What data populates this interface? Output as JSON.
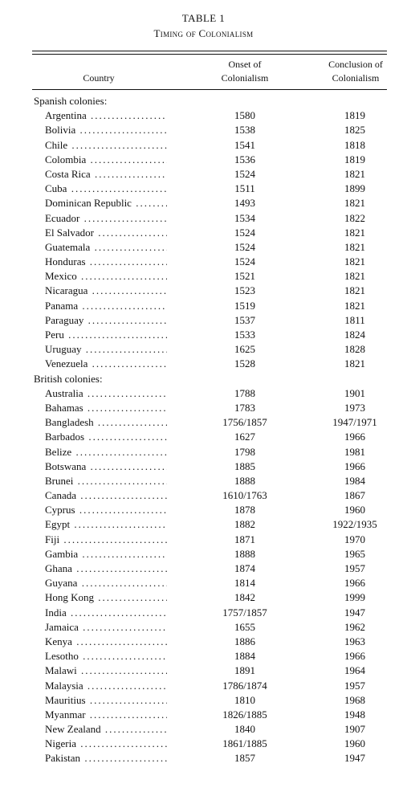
{
  "table": {
    "title": "TABLE 1",
    "subtitle": "Timing of Colonialism",
    "headers": {
      "country": "Country",
      "onset_line1": "Onset of",
      "onset_line2": "Colonialism",
      "conclusion_line1": "Conclusion of",
      "conclusion_line2": "Colonialism"
    },
    "rows": [
      {
        "type": "group",
        "label": "Spanish colonies:"
      },
      {
        "type": "row",
        "country": "Argentina",
        "onset": "1580",
        "conclusion": "1819"
      },
      {
        "type": "row",
        "country": "Bolivia",
        "onset": "1538",
        "conclusion": "1825"
      },
      {
        "type": "row",
        "country": "Chile",
        "onset": "1541",
        "conclusion": "1818"
      },
      {
        "type": "row",
        "country": "Colombia",
        "onset": "1536",
        "conclusion": "1819"
      },
      {
        "type": "row",
        "country": "Costa Rica",
        "onset": "1524",
        "conclusion": "1821"
      },
      {
        "type": "row",
        "country": "Cuba",
        "onset": "1511",
        "conclusion": "1899"
      },
      {
        "type": "row",
        "country": "Dominican Republic",
        "onset": "1493",
        "conclusion": "1821"
      },
      {
        "type": "row",
        "country": "Ecuador",
        "onset": "1534",
        "conclusion": "1822"
      },
      {
        "type": "row",
        "country": "El Salvador",
        "onset": "1524",
        "conclusion": "1821"
      },
      {
        "type": "row",
        "country": "Guatemala",
        "onset": "1524",
        "conclusion": "1821"
      },
      {
        "type": "row",
        "country": "Honduras",
        "onset": "1524",
        "conclusion": "1821"
      },
      {
        "type": "row",
        "country": "Mexico",
        "onset": "1521",
        "conclusion": "1821"
      },
      {
        "type": "row",
        "country": "Nicaragua",
        "onset": "1523",
        "conclusion": "1821"
      },
      {
        "type": "row",
        "country": "Panama",
        "onset": "1519",
        "conclusion": "1821"
      },
      {
        "type": "row",
        "country": "Paraguay",
        "onset": "1537",
        "conclusion": "1811"
      },
      {
        "type": "row",
        "country": "Peru",
        "onset": "1533",
        "conclusion": "1824"
      },
      {
        "type": "row",
        "country": "Uruguay",
        "onset": "1625",
        "conclusion": "1828"
      },
      {
        "type": "row",
        "country": "Venezuela",
        "onset": "1528",
        "conclusion": "1821"
      },
      {
        "type": "group",
        "label": "British colonies:"
      },
      {
        "type": "row",
        "country": "Australia",
        "onset": "1788",
        "conclusion": "1901"
      },
      {
        "type": "row",
        "country": "Bahamas",
        "onset": "1783",
        "conclusion": "1973"
      },
      {
        "type": "row",
        "country": "Bangladesh",
        "onset": "1756/1857",
        "conclusion": "1947/1971"
      },
      {
        "type": "row",
        "country": "Barbados",
        "onset": "1627",
        "conclusion": "1966"
      },
      {
        "type": "row",
        "country": "Belize",
        "onset": "1798",
        "conclusion": "1981"
      },
      {
        "type": "row",
        "country": "Botswana",
        "onset": "1885",
        "conclusion": "1966"
      },
      {
        "type": "row",
        "country": "Brunei",
        "onset": "1888",
        "conclusion": "1984"
      },
      {
        "type": "row",
        "country": "Canada",
        "onset": "1610/1763",
        "conclusion": "1867"
      },
      {
        "type": "row",
        "country": "Cyprus",
        "onset": "1878",
        "conclusion": "1960"
      },
      {
        "type": "row",
        "country": "Egypt",
        "onset": "1882",
        "conclusion": "1922/1935"
      },
      {
        "type": "row",
        "country": "Fiji",
        "onset": "1871",
        "conclusion": "1970"
      },
      {
        "type": "row",
        "country": "Gambia",
        "onset": "1888",
        "conclusion": "1965"
      },
      {
        "type": "row",
        "country": "Ghana",
        "onset": "1874",
        "conclusion": "1957"
      },
      {
        "type": "row",
        "country": "Guyana",
        "onset": "1814",
        "conclusion": "1966"
      },
      {
        "type": "row",
        "country": "Hong Kong",
        "onset": "1842",
        "conclusion": "1999"
      },
      {
        "type": "row",
        "country": "India",
        "onset": "1757/1857",
        "conclusion": "1947"
      },
      {
        "type": "row",
        "country": "Jamaica",
        "onset": "1655",
        "conclusion": "1962"
      },
      {
        "type": "row",
        "country": "Kenya",
        "onset": "1886",
        "conclusion": "1963"
      },
      {
        "type": "row",
        "country": "Lesotho",
        "onset": "1884",
        "conclusion": "1966"
      },
      {
        "type": "row",
        "country": "Malawi",
        "onset": "1891",
        "conclusion": "1964"
      },
      {
        "type": "row",
        "country": "Malaysia",
        "onset": "1786/1874",
        "conclusion": "1957"
      },
      {
        "type": "row",
        "country": "Mauritius",
        "onset": "1810",
        "conclusion": "1968"
      },
      {
        "type": "row",
        "country": "Myanmar",
        "onset": "1826/1885",
        "conclusion": "1948"
      },
      {
        "type": "row",
        "country": "New Zealand",
        "onset": "1840",
        "conclusion": "1907"
      },
      {
        "type": "row",
        "country": "Nigeria",
        "onset": "1861/1885",
        "conclusion": "1960"
      },
      {
        "type": "row",
        "country": "Pakistan",
        "onset": "1857",
        "conclusion": "1947"
      }
    ]
  }
}
